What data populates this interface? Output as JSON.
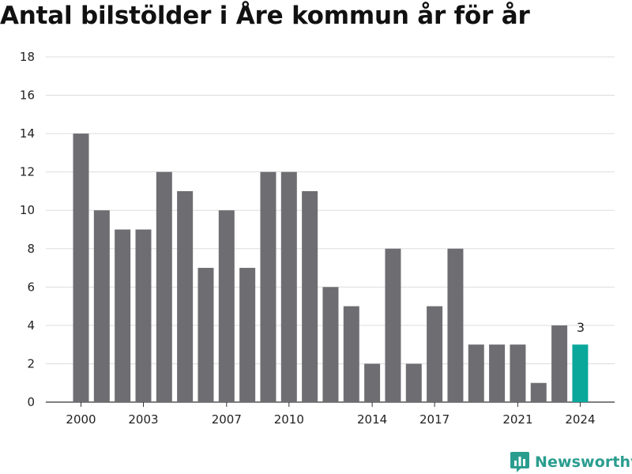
{
  "title": "Antal bilstölder i Åre kommun år för år",
  "brand": "Newsworthy",
  "colors": {
    "bar": "#6e6d72",
    "highlight": "#0aa89b",
    "grid": "#dddddd",
    "brand": "#2a9d8f"
  },
  "chart_data": {
    "type": "bar",
    "title": "Antal bilstölder i Åre kommun år för år",
    "xlabel": "",
    "ylabel": "",
    "categories": [
      2000,
      2001,
      2002,
      2003,
      2004,
      2005,
      2006,
      2007,
      2008,
      2009,
      2010,
      2011,
      2012,
      2013,
      2014,
      2015,
      2016,
      2017,
      2018,
      2019,
      2020,
      2021,
      2022,
      2023,
      2024
    ],
    "values": [
      14,
      10,
      9,
      9,
      12,
      11,
      7,
      10,
      7,
      12,
      12,
      11,
      6,
      5,
      2,
      8,
      2,
      5,
      8,
      3,
      3,
      3,
      1,
      4,
      3
    ],
    "ylim": [
      0,
      18
    ],
    "yticks": [
      0,
      2,
      4,
      6,
      8,
      10,
      12,
      14,
      16,
      18
    ],
    "xticks": [
      2000,
      2003,
      2007,
      2010,
      2014,
      2017,
      2021,
      2024
    ],
    "highlight": {
      "category": 2024,
      "label": "3"
    },
    "grid": true,
    "legend": "none"
  }
}
